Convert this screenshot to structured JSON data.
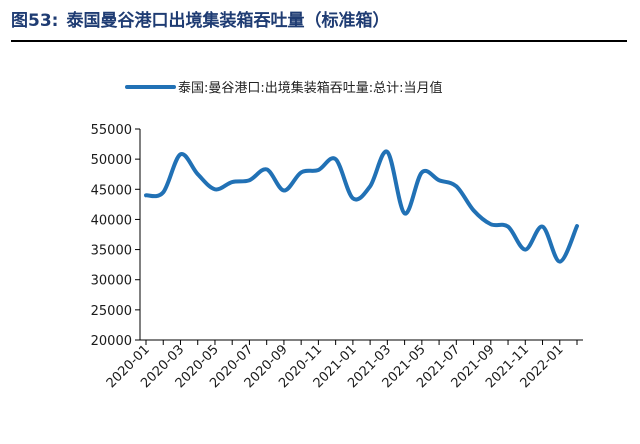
{
  "figure": {
    "number": "图53:",
    "title": "泰国曼谷港口出境集装箱吞吐量（标准箱）"
  },
  "chart_data": {
    "type": "line",
    "title": "泰国曼谷港口出境集装箱吞吐量（标准箱）",
    "x": [
      "2020-01",
      "2020-02",
      "2020-03",
      "2020-04",
      "2020-05",
      "2020-06",
      "2020-07",
      "2020-08",
      "2020-09",
      "2020-10",
      "2020-11",
      "2020-12",
      "2021-01",
      "2021-02",
      "2021-03",
      "2021-04",
      "2021-05",
      "2021-06",
      "2021-07",
      "2021-08",
      "2021-09",
      "2021-10",
      "2021-11",
      "2021-12",
      "2022-01",
      "2022-02"
    ],
    "tick_labels": [
      "2020-01",
      "2020-03",
      "2020-05",
      "2020-07",
      "2020-09",
      "2020-11",
      "2021-01",
      "2021-03",
      "2021-05",
      "2021-07",
      "2021-09",
      "2021-11",
      "2022-01"
    ],
    "series": [
      {
        "name": "泰国:曼谷港口:出境集装箱吞吐量:总计:当月值",
        "color": "#2171b5",
        "values": [
          44000,
          44500,
          50800,
          47500,
          45000,
          46200,
          46500,
          48300,
          44800,
          47800,
          48200,
          50000,
          43500,
          45500,
          51200,
          41000,
          47800,
          46500,
          45500,
          41500,
          39200,
          38800,
          35000,
          38800,
          33000,
          38900
        ]
      }
    ],
    "ylim": [
      20000,
      55000
    ],
    "yticks": [
      20000,
      25000,
      30000,
      35000,
      40000,
      45000,
      50000,
      55000
    ],
    "grid": false,
    "legend": "top"
  }
}
